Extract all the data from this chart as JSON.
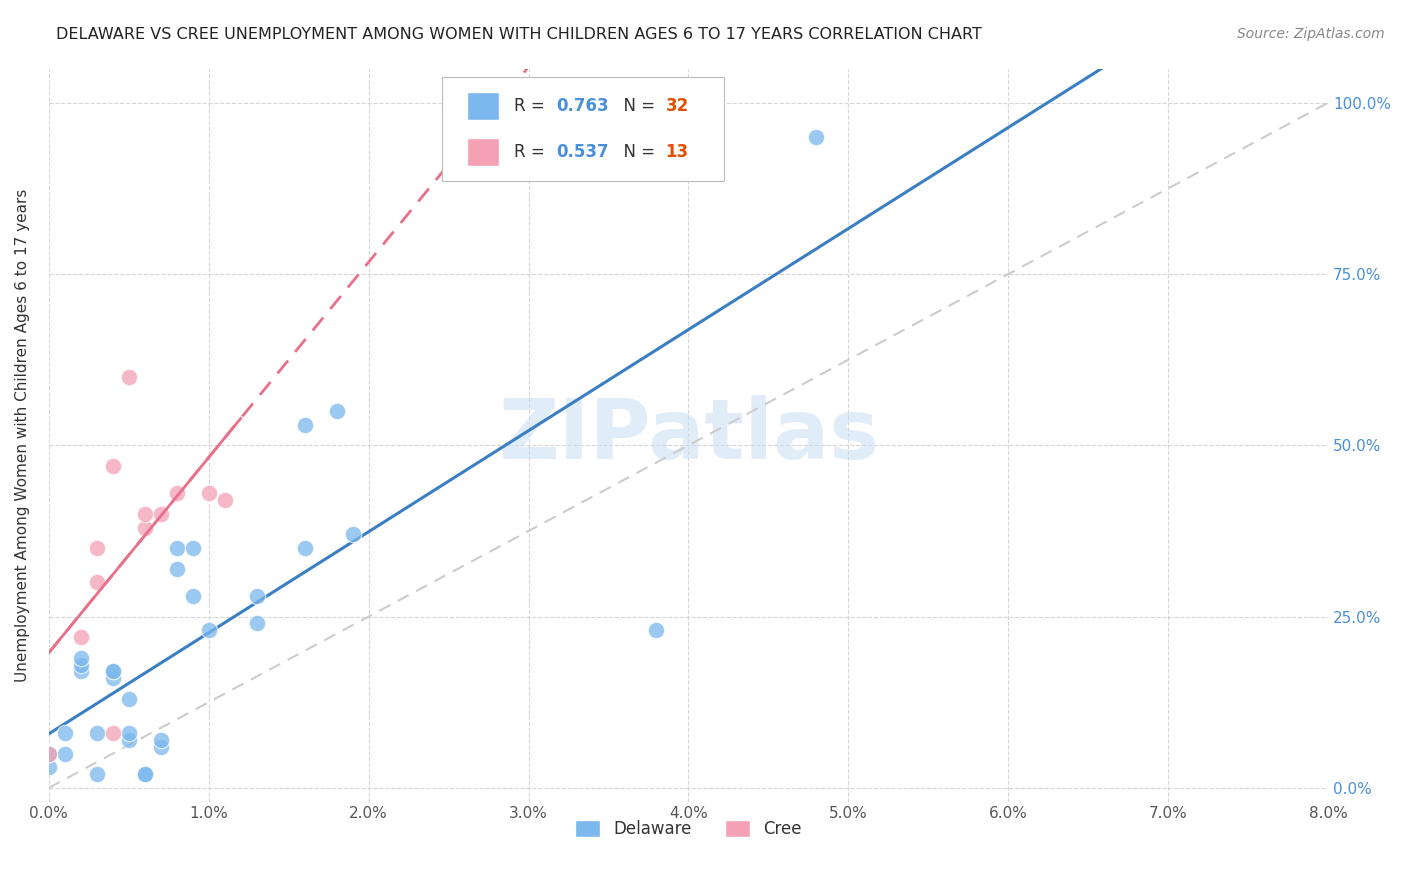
{
  "title": "DELAWARE VS CREE UNEMPLOYMENT AMONG WOMEN WITH CHILDREN AGES 6 TO 17 YEARS CORRELATION CHART",
  "source": "Source: ZipAtlas.com",
  "ylabel_label": "Unemployment Among Women with Children Ages 6 to 17 years",
  "xlim": [
    0.0,
    0.08
  ],
  "ylim": [
    -0.02,
    1.05
  ],
  "delaware_R": 0.763,
  "delaware_N": 32,
  "cree_R": 0.537,
  "cree_N": 13,
  "delaware_color": "#7ab8ed",
  "cree_color": "#f4a0b5",
  "delaware_line_color": "#3a7fc1",
  "cree_line_color": "#e8708a",
  "ref_line_color": "#cccccc",
  "watermark": "ZIPatlas",
  "title_color": "#222222",
  "source_color": "#888888",
  "tick_color": "#555555",
  "right_tick_color": "#4a90d9",
  "grid_color": "#cccccc",
  "delaware_x": [
    0.0,
    0.0,
    0.001,
    0.001,
    0.002,
    0.002,
    0.002,
    0.003,
    0.003,
    0.004,
    0.004,
    0.004,
    0.005,
    0.005,
    0.005,
    0.006,
    0.006,
    0.007,
    0.007,
    0.008,
    0.008,
    0.009,
    0.009,
    0.01,
    0.013,
    0.013,
    0.016,
    0.016,
    0.018,
    0.019,
    0.038,
    0.048
  ],
  "delaware_y": [
    0.03,
    0.05,
    0.05,
    0.08,
    0.17,
    0.18,
    0.19,
    0.02,
    0.08,
    0.16,
    0.17,
    0.17,
    0.07,
    0.08,
    0.13,
    0.02,
    0.02,
    0.06,
    0.07,
    0.32,
    0.35,
    0.28,
    0.35,
    0.23,
    0.24,
    0.28,
    0.35,
    0.53,
    0.55,
    0.37,
    0.23,
    0.95
  ],
  "cree_x": [
    0.0,
    0.002,
    0.003,
    0.003,
    0.004,
    0.004,
    0.005,
    0.006,
    0.006,
    0.007,
    0.008,
    0.01,
    0.011
  ],
  "cree_y": [
    0.05,
    0.22,
    0.3,
    0.35,
    0.08,
    0.47,
    0.6,
    0.38,
    0.4,
    0.4,
    0.43,
    0.43,
    0.42
  ],
  "x_ticks": [
    0.0,
    0.01,
    0.02,
    0.03,
    0.04,
    0.05,
    0.06,
    0.07,
    0.08
  ],
  "x_labels": [
    "0.0%",
    "1.0%",
    "2.0%",
    "3.0%",
    "4.0%",
    "5.0%",
    "6.0%",
    "7.0%",
    "8.0%"
  ],
  "y_ticks": [
    0.0,
    0.25,
    0.5,
    0.75,
    1.0
  ],
  "y_labels": [
    "0.0%",
    "25.0%",
    "50.0%",
    "75.0%",
    "100.0%"
  ]
}
